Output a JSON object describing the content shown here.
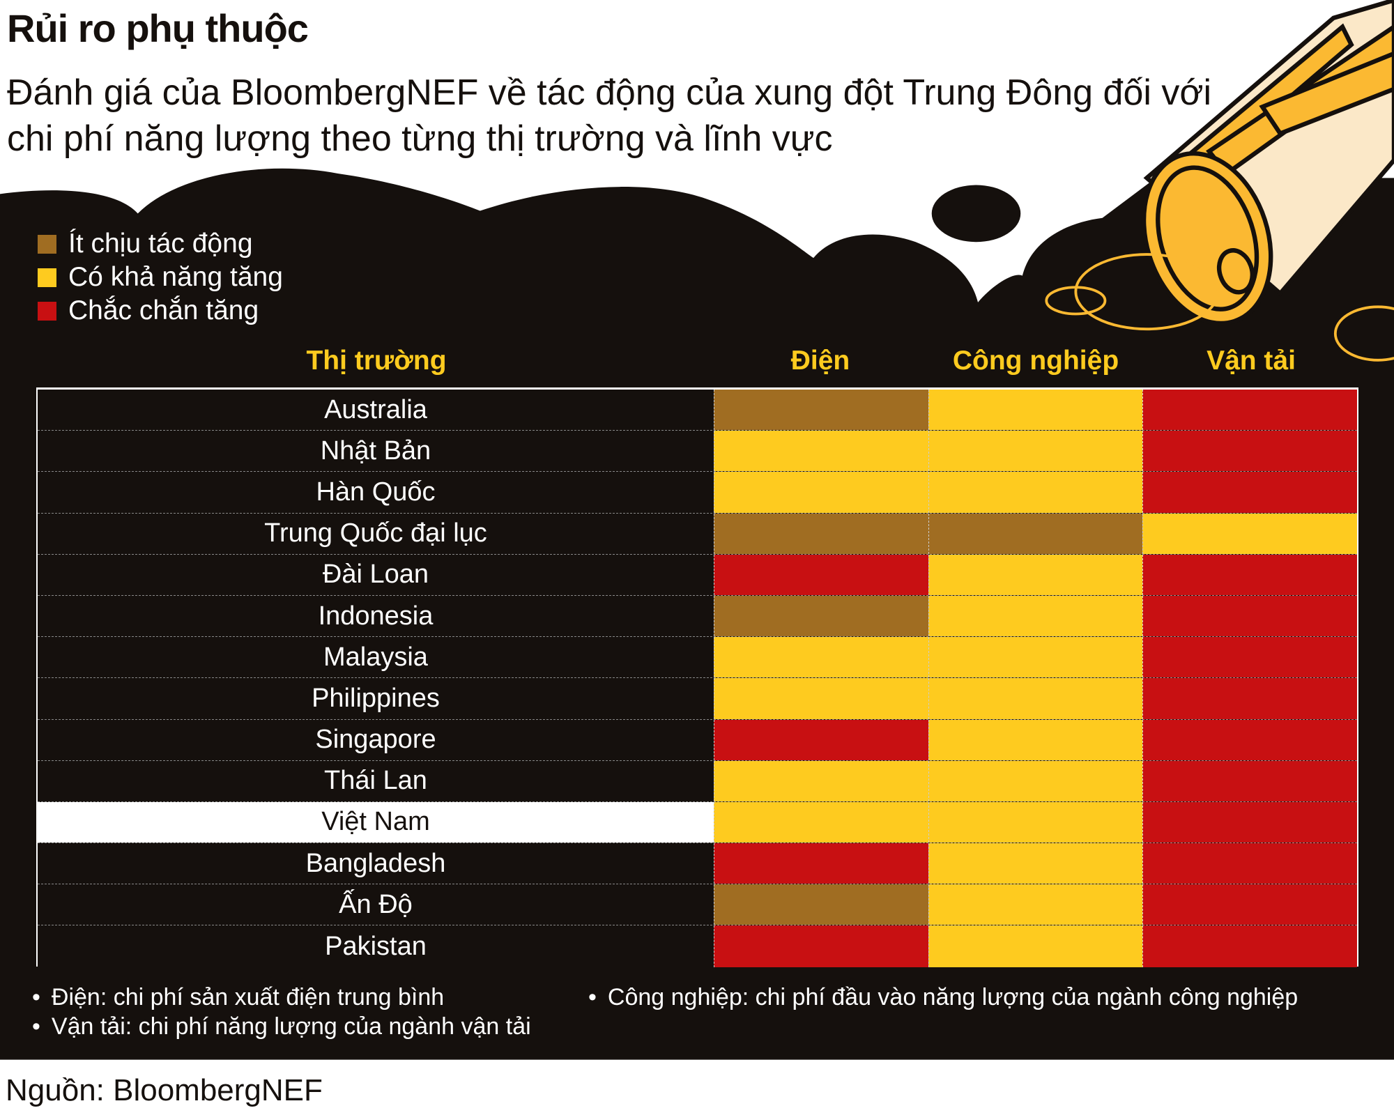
{
  "title": "Rủi ro phụ thuộc",
  "subtitle": "Đánh giá của BloombergNEF về tác động của xung đột Trung Đông đối với chi phí năng lượng theo từng thị trường và lĩnh vực",
  "colors": {
    "low": "#a06d22",
    "likely": "#fecb1f",
    "certain": "#c81012",
    "background": "#15100d"
  },
  "chart_data": {
    "type": "table",
    "title": "Rủi ro phụ thuộc",
    "legend": [
      {
        "key": "low",
        "label": "Ít chịu tác động"
      },
      {
        "key": "likely",
        "label": "Có khả năng tăng"
      },
      {
        "key": "certain",
        "label": "Chắc chắn tăng"
      }
    ],
    "columns": [
      "Thị trường",
      "Điện",
      "Công nghiệp",
      "Vận tải"
    ],
    "rows": [
      {
        "market": "Australia",
        "values": [
          "low",
          "likely",
          "certain"
        ]
      },
      {
        "market": "Nhật Bản",
        "values": [
          "likely",
          "likely",
          "certain"
        ]
      },
      {
        "market": "Hàn Quốc",
        "values": [
          "likely",
          "likely",
          "certain"
        ]
      },
      {
        "market": "Trung Quốc đại lục",
        "values": [
          "low",
          "low",
          "likely"
        ]
      },
      {
        "market": "Đài Loan",
        "values": [
          "certain",
          "likely",
          "certain"
        ]
      },
      {
        "market": "Indonesia",
        "values": [
          "low",
          "likely",
          "certain"
        ]
      },
      {
        "market": "Malaysia",
        "values": [
          "likely",
          "likely",
          "certain"
        ]
      },
      {
        "market": "Philippines",
        "values": [
          "likely",
          "likely",
          "certain"
        ]
      },
      {
        "market": "Singapore",
        "values": [
          "certain",
          "likely",
          "certain"
        ]
      },
      {
        "market": "Thái Lan",
        "values": [
          "likely",
          "likely",
          "certain"
        ]
      },
      {
        "market": "Việt Nam",
        "values": [
          "likely",
          "likely",
          "certain"
        ],
        "highlight": true
      },
      {
        "market": "Bangladesh",
        "values": [
          "certain",
          "likely",
          "certain"
        ]
      },
      {
        "market": "Ấn Độ",
        "values": [
          "low",
          "likely",
          "certain"
        ]
      },
      {
        "market": "Pakistan",
        "values": [
          "certain",
          "likely",
          "certain"
        ]
      }
    ]
  },
  "notes": [
    "Điện: chi phí sản xuất điện trung bình",
    "Công nghiệp: chi phí đầu vào năng lượng của ngành công nghiệp",
    "Vận tải: chi phí năng lượng của ngành vận tải"
  ],
  "source": "Nguồn: BloombergNEF"
}
